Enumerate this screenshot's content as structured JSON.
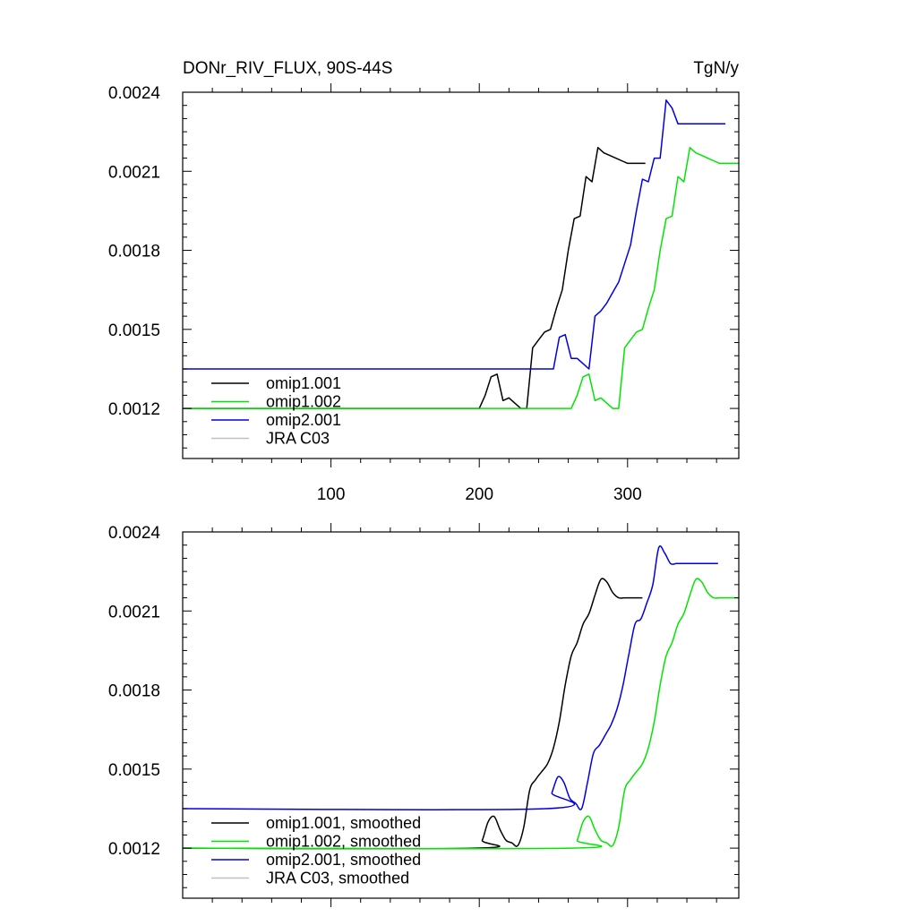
{
  "colors": {
    "omip1_001": "#000000",
    "omip1_002": "#00e600",
    "omip2_001": "#0000e6",
    "jra_c03": "#c0c0c0"
  },
  "chart_data": [
    {
      "type": "line",
      "title": "DONr_RIV_FLUX, 90S-44S",
      "units": "TgN/y",
      "xlim": [
        0,
        375
      ],
      "ylim": [
        0.00101,
        0.0024
      ],
      "x_ticks": [
        100,
        200,
        300
      ],
      "x_tick_labels": [
        "100",
        "200",
        "300"
      ],
      "y_ticks": [
        0.0012,
        0.0015,
        0.0018,
        0.0021,
        0.0024
      ],
      "y_tick_labels": [
        "0.0012",
        "0.0015",
        "0.0018",
        "0.0021",
        "0.0024"
      ],
      "legend_position": "bottom-left",
      "series": [
        {
          "name": "omip1.001",
          "color_key": "omip1_001",
          "x": [
            0,
            200,
            204,
            208,
            212,
            216,
            220,
            224,
            228,
            232,
            236,
            240,
            244,
            248,
            252,
            256,
            260,
            264,
            268,
            272,
            276,
            280,
            284,
            288,
            292,
            296,
            300,
            304,
            308,
            312
          ],
          "y": [
            0.0012,
            0.0012,
            0.00125,
            0.00132,
            0.00133,
            0.00123,
            0.00124,
            0.00122,
            0.0012,
            0.0012,
            0.00143,
            0.00146,
            0.00149,
            0.0015,
            0.00158,
            0.00165,
            0.0018,
            0.00192,
            0.00193,
            0.00208,
            0.00206,
            0.00219,
            0.00217,
            0.00216,
            0.00215,
            0.00214,
            0.00213,
            0.00213,
            0.00213,
            0.00213
          ]
        },
        {
          "name": "omip1.002",
          "color_key": "omip1_002",
          "x": [
            0,
            262,
            266,
            270,
            274,
            278,
            282,
            286,
            290,
            294,
            298,
            302,
            306,
            310,
            314,
            318,
            322,
            326,
            330,
            334,
            338,
            342,
            346,
            350,
            354,
            358,
            362,
            366,
            370,
            375
          ],
          "y": [
            0.0012,
            0.0012,
            0.00125,
            0.00132,
            0.00133,
            0.00123,
            0.00124,
            0.00122,
            0.0012,
            0.0012,
            0.00143,
            0.00146,
            0.00149,
            0.0015,
            0.00158,
            0.00165,
            0.0018,
            0.00192,
            0.00193,
            0.00208,
            0.00206,
            0.00219,
            0.00217,
            0.00216,
            0.00215,
            0.00214,
            0.00213,
            0.00213,
            0.00213,
            0.00213
          ]
        },
        {
          "name": "omip2.001",
          "color_key": "omip2_001",
          "x": [
            0,
            250,
            254,
            258,
            262,
            266,
            270,
            274,
            278,
            282,
            286,
            290,
            294,
            298,
            302,
            306,
            310,
            314,
            318,
            322,
            326,
            330,
            334,
            338,
            342,
            346,
            350,
            354,
            358,
            362,
            366
          ],
          "y": [
            0.00135,
            0.00135,
            0.00147,
            0.00148,
            0.00139,
            0.00139,
            0.00137,
            0.00135,
            0.00155,
            0.00157,
            0.0016,
            0.00164,
            0.00168,
            0.00175,
            0.00182,
            0.00195,
            0.00207,
            0.00206,
            0.00215,
            0.00215,
            0.00237,
            0.00234,
            0.00228,
            0.00228,
            0.00228,
            0.00228,
            0.00228,
            0.00228,
            0.00228,
            0.00228,
            0.00228
          ]
        },
        {
          "name": "JRA C03",
          "color_key": "jra_c03",
          "x": [],
          "y": []
        }
      ]
    },
    {
      "type": "line",
      "xlim": [
        0,
        375
      ],
      "ylim": [
        0.00101,
        0.0024
      ],
      "y_ticks": [
        0.0012,
        0.0015,
        0.0018,
        0.0021,
        0.0024
      ],
      "y_tick_labels": [
        "0.0012",
        "0.0015",
        "0.0018",
        "0.0021",
        "0.0024"
      ],
      "legend_position": "bottom-left",
      "series": [
        {
          "name": "omip1.001, smoothed",
          "color_key": "omip1_001",
          "x": [
            0,
            198,
            202,
            206,
            210,
            214,
            218,
            222,
            226,
            230,
            234,
            238,
            242,
            246,
            250,
            254,
            258,
            262,
            266,
            270,
            274,
            278,
            282,
            286,
            290,
            294,
            298,
            302,
            306,
            310
          ],
          "y": [
            0.0012,
            0.0012,
            0.00123,
            0.0013,
            0.00132,
            0.00127,
            0.00123,
            0.00122,
            0.00121,
            0.00128,
            0.00142,
            0.00146,
            0.00149,
            0.00152,
            0.00158,
            0.00168,
            0.00182,
            0.00193,
            0.00198,
            0.00205,
            0.00209,
            0.00216,
            0.00222,
            0.00221,
            0.00217,
            0.00215,
            0.00215,
            0.00215,
            0.00215,
            0.00215
          ]
        },
        {
          "name": "omip1.002, smoothed",
          "color_key": "omip1_002",
          "x": [
            0,
            262,
            266,
            270,
            274,
            278,
            282,
            286,
            290,
            294,
            298,
            302,
            306,
            310,
            314,
            318,
            322,
            326,
            330,
            334,
            338,
            342,
            346,
            350,
            354,
            358,
            362,
            366,
            370,
            375
          ],
          "y": [
            0.0012,
            0.0012,
            0.00123,
            0.0013,
            0.00132,
            0.00127,
            0.00123,
            0.00122,
            0.00121,
            0.00128,
            0.00142,
            0.00146,
            0.00149,
            0.00152,
            0.00158,
            0.00168,
            0.00182,
            0.00193,
            0.00198,
            0.00205,
            0.00209,
            0.00216,
            0.00222,
            0.00221,
            0.00217,
            0.00215,
            0.00215,
            0.00215,
            0.00215,
            0.00215
          ]
        },
        {
          "name": "omip2.001, smoothed",
          "color_key": "omip2_001",
          "x": [
            0,
            245,
            249,
            253,
            257,
            261,
            265,
            269,
            273,
            277,
            281,
            285,
            289,
            293,
            297,
            301,
            305,
            309,
            313,
            317,
            321,
            325,
            329,
            333,
            337,
            341,
            345,
            349,
            353,
            357,
            361
          ],
          "y": [
            0.00135,
            0.00135,
            0.00141,
            0.00147,
            0.00145,
            0.00139,
            0.00137,
            0.00135,
            0.00145,
            0.00156,
            0.00159,
            0.00163,
            0.00167,
            0.00173,
            0.00182,
            0.00194,
            0.00205,
            0.00207,
            0.00213,
            0.0022,
            0.00234,
            0.00232,
            0.00228,
            0.00228,
            0.00228,
            0.00228,
            0.00228,
            0.00228,
            0.00228,
            0.00228,
            0.00228
          ]
        },
        {
          "name": "JRA C03, smoothed",
          "color_key": "jra_c03",
          "x": [],
          "y": []
        }
      ]
    }
  ]
}
